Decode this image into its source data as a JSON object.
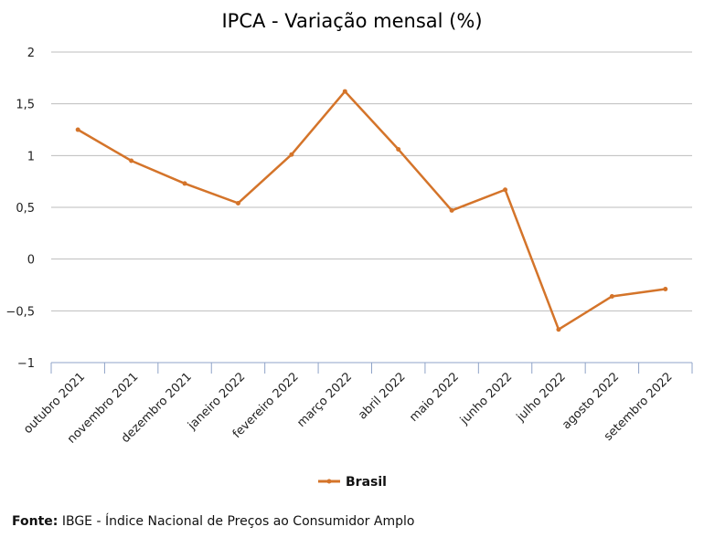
{
  "chart_data": {
    "type": "line",
    "title": "IPCA - Variação mensal (%)",
    "xlabel": "",
    "ylabel": "",
    "categories": [
      "outubro 2021",
      "novembro 2021",
      "dezembro 2021",
      "janeiro 2022",
      "fevereiro 2022",
      "março 2022",
      "abril 2022",
      "maio 2022",
      "junho 2022",
      "julho 2022",
      "agosto 2022",
      "setembro 2022"
    ],
    "series": [
      {
        "name": "Brasil",
        "color": "#D4742A",
        "values": [
          1.25,
          0.95,
          0.73,
          0.54,
          1.01,
          1.62,
          1.06,
          0.47,
          0.67,
          -0.68,
          -0.36,
          -0.29
        ]
      }
    ],
    "ylim": [
      -1,
      2
    ],
    "yticks": [
      2,
      1.5,
      1,
      0.5,
      0,
      -0.5,
      -1
    ],
    "ytick_labels": [
      "2",
      "1,5",
      "1",
      "0,5",
      "0",
      "-0,5",
      "-1"
    ],
    "grid": true,
    "legend_position": "bottom-center"
  },
  "source": {
    "label": "Fonte:",
    "text": " IBGE - Índice Nacional de Preços ao Consumidor Amplo"
  },
  "colors": {
    "gridline": "#BDBDBD",
    "axis": "#8FA3C8"
  }
}
